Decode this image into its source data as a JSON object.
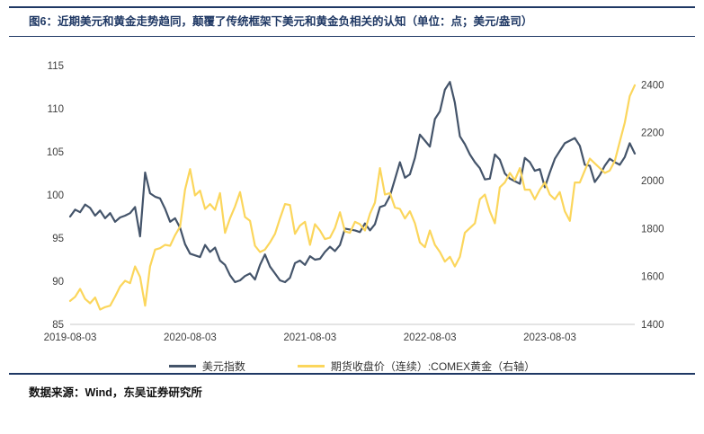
{
  "figure": {
    "title": "图6：近期美元和黄金走势趋同，颠覆了传统框架下美元和黄金负相关的认知（单位：点；美元/盎司）",
    "source": "数据来源：Wind，东吴证券研究所"
  },
  "chart_data": {
    "type": "line",
    "title": "近期美元和黄金走势趋同",
    "x_tick_labels": [
      "2019-08-03",
      "2020-08-03",
      "2021-08-03",
      "2022-08-03",
      "2023-08-03"
    ],
    "x_tick_indices": [
      0,
      24,
      48,
      72,
      96
    ],
    "left_axis": {
      "ylim": [
        85,
        115
      ],
      "ticks": [
        85,
        90,
        95,
        100,
        105,
        110,
        115
      ]
    },
    "right_axis": {
      "ylim": [
        1400,
        2480
      ],
      "ticks": [
        1400,
        1600,
        1800,
        2000,
        2200,
        2400
      ]
    },
    "grid": false,
    "legend_position": "bottom",
    "series": [
      {
        "name": "美元指数",
        "yaxis": "left",
        "color": "#44546A",
        "values": [
          97.5,
          98.3,
          98.0,
          98.9,
          98.5,
          97.6,
          98.2,
          97.3,
          97.9,
          96.9,
          97.4,
          97.6,
          97.9,
          98.6,
          95.2,
          102.6,
          100.2,
          99.8,
          99.6,
          98.4,
          96.9,
          97.3,
          96.2,
          94.3,
          93.2,
          93.0,
          92.8,
          94.2,
          93.4,
          93.9,
          92.4,
          91.9,
          90.7,
          89.9,
          90.1,
          90.6,
          90.9,
          90.2,
          91.9,
          93.1,
          91.7,
          90.9,
          90.1,
          89.9,
          90.4,
          92.1,
          92.4,
          91.9,
          92.9,
          92.5,
          92.6,
          93.4,
          94.0,
          93.5,
          94.2,
          96.1,
          96.0,
          95.9,
          95.7,
          96.7,
          95.9,
          96.6,
          98.6,
          98.8,
          99.9,
          101.8,
          103.8,
          102.0,
          102.4,
          104.3,
          107.0,
          106.3,
          105.6,
          108.8,
          109.7,
          112.2,
          113.1,
          110.7,
          106.8,
          105.9,
          104.7,
          103.8,
          103.1,
          101.8,
          101.9,
          104.7,
          104.1,
          102.5,
          101.9,
          101.6,
          101.3,
          104.3,
          103.8,
          102.8,
          103.0,
          100.9,
          102.6,
          104.2,
          105.1,
          106.0,
          106.3,
          106.6,
          105.7,
          103.5,
          103.4,
          101.5,
          102.3,
          103.4,
          104.2,
          103.8,
          103.5,
          104.4,
          106.0,
          104.8
        ]
      },
      {
        "name": "期货收盘价（连续）:COMEX黄金（右轴）",
        "yaxis": "right",
        "color": "#FBD65C",
        "values": [
          1498,
          1515,
          1548,
          1506,
          1488,
          1512,
          1462,
          1472,
          1478,
          1516,
          1558,
          1582,
          1572,
          1642,
          1598,
          1478,
          1642,
          1712,
          1718,
          1732,
          1728,
          1772,
          1808,
          1962,
          2048,
          1938,
          1958,
          1882,
          1902,
          1878,
          1948,
          1782,
          1842,
          1892,
          1952,
          1848,
          1832,
          1728,
          1702,
          1712,
          1742,
          1778,
          1842,
          1902,
          1898,
          1778,
          1812,
          1828,
          1732,
          1818,
          1792,
          1756,
          1762,
          1802,
          1868,
          1788,
          1782,
          1828,
          1818,
          1792,
          1862,
          1908,
          2052,
          1942,
          1948,
          1888,
          1882,
          1842,
          1872,
          1822,
          1742,
          1722,
          1792,
          1732,
          1702,
          1662,
          1682,
          1642,
          1682,
          1782,
          1802,
          1822,
          1922,
          1942,
          1872,
          1822,
          1972,
          1992,
          2032,
          2002,
          2052,
          1962,
          1962,
          1922,
          1962,
          1992,
          1942,
          1922,
          1952,
          1872,
          1832,
          1992,
          1992,
          2042,
          2092,
          2072,
          2052,
          2032,
          2042,
          2082,
          2162,
          2242,
          2352,
          2398
        ]
      }
    ]
  }
}
